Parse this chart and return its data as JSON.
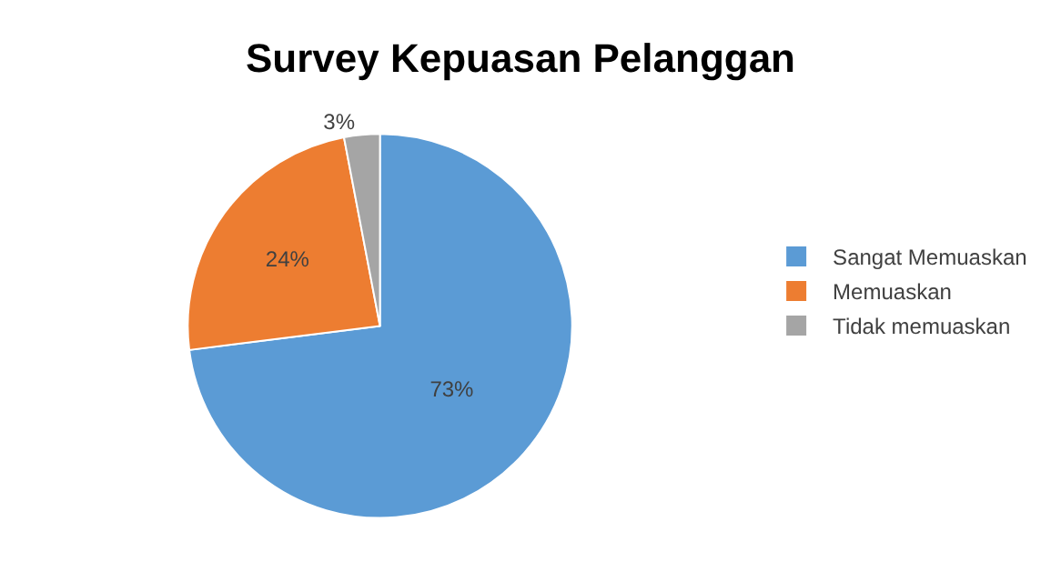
{
  "chart_data": {
    "type": "pie",
    "title": "Survey Kepuasan Pelanggan",
    "categories": [
      "Sangat Memuaskan",
      "Memuaskan",
      "Tidak memuaskan"
    ],
    "values": [
      73,
      24,
      3
    ],
    "colors": [
      "#5b9bd5",
      "#ed7d31",
      "#a5a5a5"
    ],
    "value_labels": [
      "73%",
      "24%",
      "3%"
    ],
    "legend": "right"
  }
}
